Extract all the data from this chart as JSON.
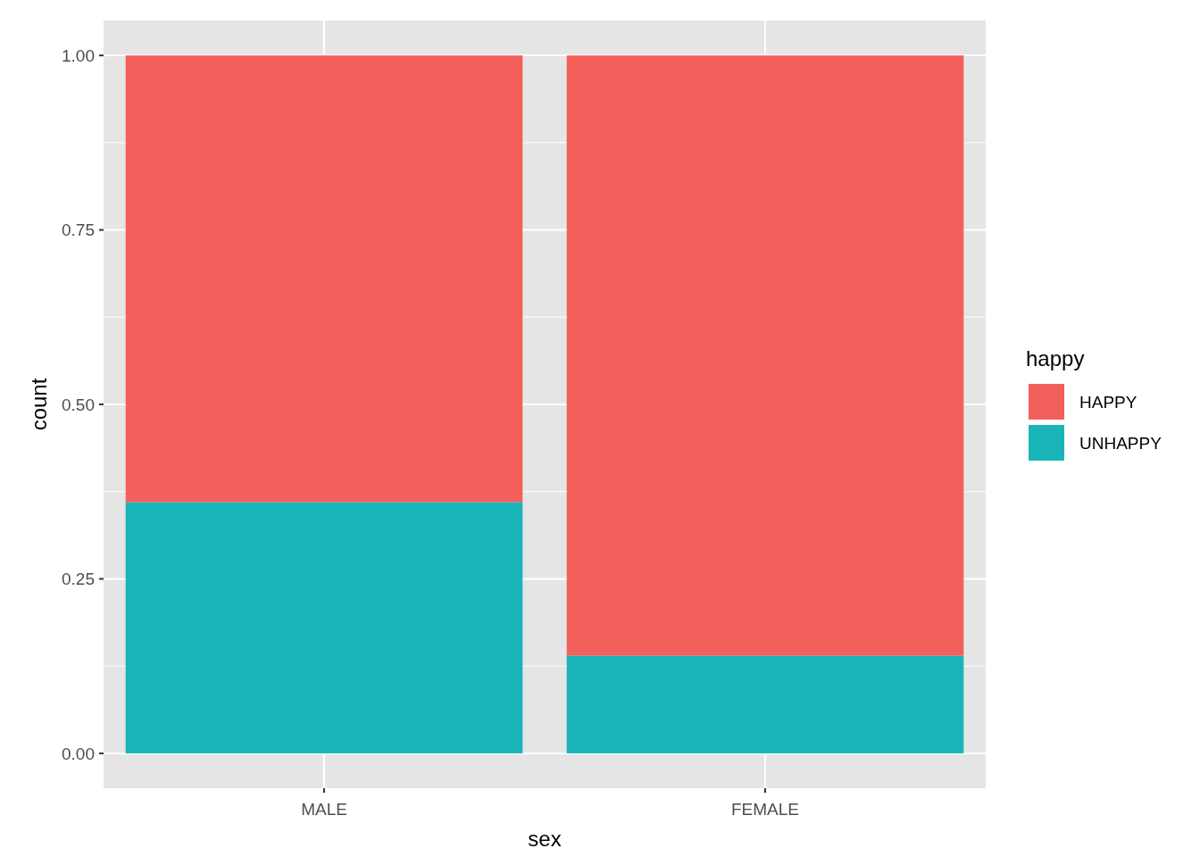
{
  "chart_data": {
    "type": "bar",
    "xlabel": "sex",
    "ylabel": "count",
    "legend_title": "happy",
    "categories": [
      "MALE",
      "FEMALE"
    ],
    "stacked": true,
    "series": [
      {
        "name": "UNHAPPY",
        "color": "#19b4b8",
        "values": [
          0.36,
          0.14
        ]
      },
      {
        "name": "HAPPY",
        "color": "#f35f5a",
        "values": [
          0.64,
          0.86
        ]
      }
    ],
    "ylim": [
      -0.05,
      1.05
    ],
    "yticks": [
      {
        "value": 0,
        "label": "0.00"
      },
      {
        "value": 0.25,
        "label": "0.25"
      },
      {
        "value": 0.5,
        "label": "0.50"
      },
      {
        "value": 0.75,
        "label": "0.75"
      },
      {
        "value": 1,
        "label": "1.00"
      }
    ],
    "grid": true,
    "legend": "right"
  }
}
